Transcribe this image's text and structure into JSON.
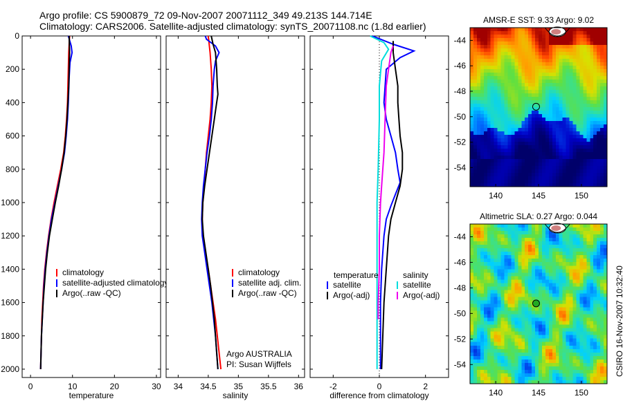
{
  "header": {
    "line1": "Argo profile: CS 5900879_72 09-Nov-2007 20071112_349 49.213S 144.714E",
    "line2": "Climatology: CARS2006. Satellite-adjusted climatology: synTS_20071108.nc (1.8d earlier)"
  },
  "stamp": "CSIRO 16-Nov-2007 10:32:40",
  "chart_data": [
    {
      "type": "line",
      "id": "temperature",
      "xlabel": "temperature",
      "xlim": [
        -2,
        31
      ],
      "ylim": [
        2050,
        0
      ],
      "xticks": [
        0,
        10,
        20,
        30
      ],
      "yticks": [
        0,
        200,
        400,
        600,
        800,
        1000,
        1200,
        1400,
        1600,
        1800,
        2000
      ],
      "legend": [
        "climatology",
        "satellite-adjusted climatology",
        "Argo(..raw -QC)"
      ],
      "series": [
        {
          "name": "climatology",
          "color": "#ff0000",
          "points": [
            [
              9.3,
              0
            ],
            [
              9.2,
              50
            ],
            [
              9.1,
              100
            ],
            [
              9.0,
              200
            ],
            [
              8.9,
              300
            ],
            [
              8.8,
              400
            ],
            [
              8.6,
              500
            ],
            [
              8.3,
              600
            ],
            [
              7.9,
              700
            ],
            [
              7.2,
              800
            ],
            [
              6.4,
              900
            ],
            [
              5.6,
              1000
            ],
            [
              4.9,
              1100
            ],
            [
              4.3,
              1200
            ],
            [
              3.8,
              1300
            ],
            [
              3.4,
              1400
            ],
            [
              3.1,
              1500
            ],
            [
              2.9,
              1600
            ],
            [
              2.7,
              1700
            ],
            [
              2.6,
              1800
            ],
            [
              2.5,
              1900
            ],
            [
              2.4,
              2000
            ]
          ]
        },
        {
          "name": "satellite-adjusted climatology",
          "color": "#0000ff",
          "points": [
            [
              9.0,
              0
            ],
            [
              9.7,
              60
            ],
            [
              9.9,
              100
            ],
            [
              9.4,
              160
            ],
            [
              9.2,
              250
            ],
            [
              9.0,
              400
            ],
            [
              8.8,
              500
            ],
            [
              8.5,
              600
            ],
            [
              8.1,
              700
            ],
            [
              7.4,
              800
            ],
            [
              6.6,
              900
            ],
            [
              5.8,
              1000
            ],
            [
              5.0,
              1100
            ],
            [
              4.4,
              1200
            ],
            [
              3.9,
              1300
            ],
            [
              3.5,
              1400
            ],
            [
              3.2,
              1500
            ],
            [
              3.0,
              1600
            ],
            [
              2.8,
              1700
            ],
            [
              2.6,
              1800
            ],
            [
              2.5,
              1900
            ],
            [
              2.4,
              2000
            ]
          ]
        },
        {
          "name": "Argo(..raw -QC)",
          "color": "#000000",
          "points": [
            [
              9.2,
              0
            ],
            [
              9.3,
              100
            ],
            [
              9.2,
              200
            ],
            [
              9.1,
              300
            ],
            [
              8.9,
              400
            ],
            [
              8.7,
              500
            ],
            [
              8.4,
              600
            ],
            [
              8.0,
              700
            ],
            [
              7.4,
              800
            ],
            [
              6.7,
              900
            ],
            [
              5.9,
              1000
            ],
            [
              5.2,
              1100
            ],
            [
              4.5,
              1200
            ],
            [
              4.0,
              1300
            ],
            [
              3.6,
              1400
            ],
            [
              3.3,
              1500
            ],
            [
              3.0,
              1600
            ],
            [
              2.8,
              1700
            ],
            [
              2.6,
              1800
            ],
            [
              2.5,
              1900
            ],
            [
              2.4,
              2000
            ]
          ]
        }
      ]
    },
    {
      "type": "line",
      "id": "salinity",
      "xlabel": "salinity",
      "xlim": [
        33.8,
        36.1
      ],
      "ylim": [
        2050,
        0
      ],
      "xticks": [
        34,
        34.5,
        35,
        35.5,
        36
      ],
      "legend": [
        "climatology",
        "satellite adj. clim.",
        "Argo(..raw -QC)"
      ],
      "annotation": [
        "Argo AUSTRALIA",
        "PI: Susan Wijffels"
      ],
      "series": [
        {
          "name": "climatology",
          "color": "#ff0000",
          "points": [
            [
              34.5,
              0
            ],
            [
              34.53,
              100
            ],
            [
              34.55,
              200
            ],
            [
              34.56,
              300
            ],
            [
              34.55,
              400
            ],
            [
              34.53,
              500
            ],
            [
              34.5,
              600
            ],
            [
              34.47,
              700
            ],
            [
              34.45,
              800
            ],
            [
              34.43,
              900
            ],
            [
              34.41,
              1000
            ],
            [
              34.4,
              1100
            ],
            [
              34.41,
              1200
            ],
            [
              34.45,
              1300
            ],
            [
              34.5,
              1400
            ],
            [
              34.54,
              1500
            ],
            [
              34.58,
              1600
            ],
            [
              34.62,
              1700
            ],
            [
              34.65,
              1800
            ],
            [
              34.68,
              1900
            ],
            [
              34.71,
              2000
            ]
          ]
        },
        {
          "name": "satellite adj. clim.",
          "color": "#0000ff",
          "points": [
            [
              34.45,
              0
            ],
            [
              34.47,
              20
            ],
            [
              34.62,
              60
            ],
            [
              34.68,
              100
            ],
            [
              34.62,
              150
            ],
            [
              34.6,
              200
            ],
            [
              34.58,
              300
            ],
            [
              34.57,
              400
            ],
            [
              34.55,
              500
            ],
            [
              34.52,
              600
            ],
            [
              34.48,
              700
            ],
            [
              34.45,
              800
            ],
            [
              34.42,
              900
            ],
            [
              34.4,
              1000
            ],
            [
              34.39,
              1100
            ],
            [
              34.4,
              1200
            ],
            [
              34.44,
              1300
            ],
            [
              34.48,
              1400
            ],
            [
              34.52,
              1500
            ],
            [
              34.56,
              1600
            ],
            [
              34.59,
              1700
            ],
            [
              34.62,
              1800
            ],
            [
              34.64,
              1900
            ],
            [
              34.66,
              2000
            ]
          ]
        },
        {
          "name": "Argo(..raw -QC)",
          "color": "#000000",
          "points": [
            [
              34.55,
              0
            ],
            [
              34.58,
              50
            ],
            [
              34.62,
              100
            ],
            [
              34.64,
              200
            ],
            [
              34.65,
              300
            ],
            [
              34.66,
              350
            ],
            [
              34.64,
              400
            ],
            [
              34.6,
              500
            ],
            [
              34.56,
              600
            ],
            [
              34.52,
              700
            ],
            [
              34.48,
              800
            ],
            [
              34.44,
              900
            ],
            [
              34.41,
              1000
            ],
            [
              34.4,
              1100
            ],
            [
              34.42,
              1200
            ],
            [
              34.46,
              1300
            ],
            [
              34.5,
              1400
            ],
            [
              34.54,
              1500
            ],
            [
              34.57,
              1600
            ],
            [
              34.6,
              1700
            ],
            [
              34.62,
              1800
            ],
            [
              34.64,
              1900
            ],
            [
              34.66,
              2000
            ]
          ]
        }
      ]
    },
    {
      "type": "line",
      "id": "difference",
      "xlabel": "difference from climatology",
      "xlim": [
        -3,
        3
      ],
      "ylim": [
        2050,
        0
      ],
      "xticks": [
        -2,
        0,
        2
      ],
      "legend": {
        "temperature_title": "temperature",
        "temperature": [
          "satellite",
          "Argo(-adj)"
        ],
        "salinity_title": "salinity",
        "salinity": [
          "satellite",
          "Argo(-adj)"
        ]
      },
      "series": [
        {
          "name": "temperature satellite",
          "color": "#0000ff",
          "points": [
            [
              -0.3,
              0
            ],
            [
              0.6,
              50
            ],
            [
              1.5,
              90
            ],
            [
              0.9,
              130
            ],
            [
              0.3,
              200
            ],
            [
              0.2,
              400
            ],
            [
              0.3,
              500
            ],
            [
              0.5,
              600
            ],
            [
              0.7,
              700
            ],
            [
              0.8,
              800
            ],
            [
              0.9,
              880
            ],
            [
              0.7,
              950
            ],
            [
              0.5,
              1020
            ],
            [
              0.3,
              1100
            ],
            [
              0.2,
              1200
            ],
            [
              0.1,
              1400
            ],
            [
              0.05,
              1600
            ],
            [
              0.05,
              1800
            ],
            [
              0.05,
              2000
            ]
          ]
        },
        {
          "name": "temperature Argo(-adj)",
          "color": "#000000",
          "points": [
            [
              0.6,
              30
            ],
            [
              0.6,
              100
            ],
            [
              0.7,
              200
            ],
            [
              0.8,
              300
            ],
            [
              0.8,
              400
            ],
            [
              0.85,
              500
            ],
            [
              0.9,
              600
            ],
            [
              1.0,
              700
            ],
            [
              1.0,
              800
            ],
            [
              0.9,
              900
            ],
            [
              0.7,
              1000
            ],
            [
              0.5,
              1100
            ],
            [
              0.4,
              1200
            ],
            [
              0.3,
              1400
            ],
            [
              0.2,
              1600
            ],
            [
              0.15,
              1800
            ],
            [
              0.1,
              2000
            ]
          ]
        },
        {
          "name": "salinity satellite",
          "color": "#00dddd",
          "points": [
            [
              -0.4,
              0
            ],
            [
              0.2,
              40
            ],
            [
              0.4,
              80
            ],
            [
              0.1,
              150
            ],
            [
              0.0,
              300
            ],
            [
              0.0,
              500
            ],
            [
              -0.05,
              800
            ],
            [
              -0.1,
              1000
            ],
            [
              -0.1,
              1200
            ],
            [
              -0.1,
              1400
            ],
            [
              -0.1,
              1600
            ],
            [
              -0.1,
              1800
            ],
            [
              -0.1,
              2000
            ]
          ]
        },
        {
          "name": "salinity Argo(-adj)",
          "color": "#ee00ee",
          "points": [
            [
              0.6,
              60
            ],
            [
              0.5,
              100
            ],
            [
              0.4,
              200
            ],
            [
              0.3,
              300
            ],
            [
              0.25,
              500
            ],
            [
              0.2,
              700
            ],
            [
              0.15,
              800
            ],
            [
              0.1,
              900
            ],
            [
              0.05,
              1000
            ],
            [
              0.0,
              1200
            ],
            [
              0.0,
              1400
            ],
            [
              -0.05,
              1600
            ],
            [
              -0.05,
              1700
            ]
          ]
        }
      ]
    },
    {
      "type": "heatmap",
      "id": "amsre-sst",
      "title": "AMSR-E SST: 9.33 Argo: 9.02",
      "xlim": [
        137,
        153
      ],
      "ylim": [
        -55.5,
        -43
      ],
      "xticks": [
        140,
        145,
        150
      ],
      "yticks": [
        -44,
        -46,
        -48,
        -50,
        -52,
        -54
      ],
      "argo_position": [
        144.714,
        -49.213
      ]
    },
    {
      "type": "heatmap",
      "id": "altimetric-sla",
      "title": "Altimetric SLA: 0.27 Argo: 0.044",
      "xlim": [
        137,
        153
      ],
      "ylim": [
        -55.5,
        -43
      ],
      "xticks": [
        140,
        145,
        150
      ],
      "yticks": [
        -44,
        -46,
        -48,
        -50,
        -52,
        -54
      ],
      "argo_position": [
        144.714,
        -49.213
      ]
    }
  ]
}
